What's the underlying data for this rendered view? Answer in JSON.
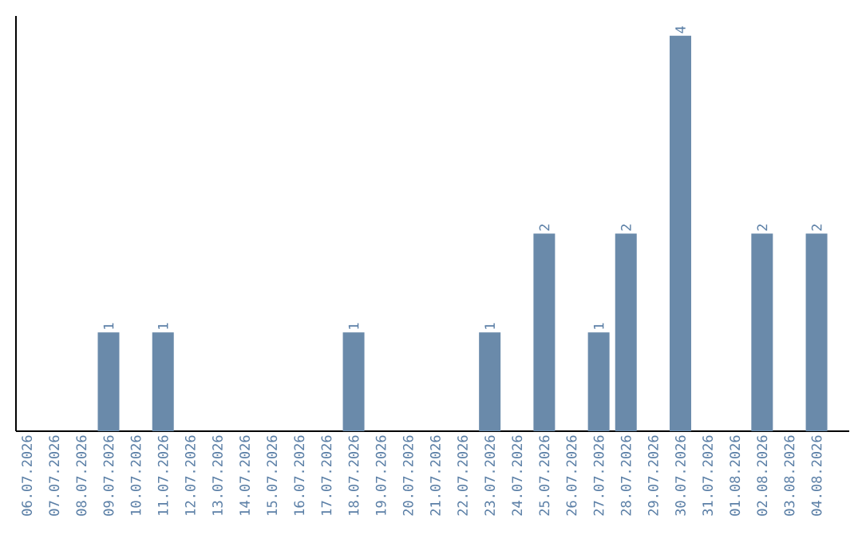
{
  "chart_data": {
    "type": "bar",
    "categories": [
      "06.07.2026",
      "07.07.2026",
      "08.07.2026",
      "09.07.2026",
      "10.07.2026",
      "11.07.2026",
      "12.07.2026",
      "13.07.2026",
      "14.07.2026",
      "15.07.2026",
      "16.07.2026",
      "17.07.2026",
      "18.07.2026",
      "19.07.2026",
      "20.07.2026",
      "21.07.2026",
      "22.07.2026",
      "23.07.2026",
      "24.07.2026",
      "25.07.2026",
      "26.07.2026",
      "27.07.2026",
      "28.07.2026",
      "29.07.2026",
      "30.07.2026",
      "31.07.2026",
      "01.08.2026",
      "02.08.2026",
      "03.08.2026",
      "04.08.2026"
    ],
    "values": [
      0,
      0,
      0,
      1,
      0,
      1,
      0,
      0,
      0,
      0,
      0,
      0,
      1,
      0,
      0,
      0,
      0,
      1,
      0,
      2,
      0,
      1,
      2,
      0,
      4,
      0,
      0,
      2,
      0,
      2
    ],
    "value_labels": [
      null,
      null,
      null,
      "1",
      null,
      "1",
      null,
      null,
      null,
      null,
      null,
      null,
      "1",
      null,
      null,
      null,
      null,
      "1",
      null,
      "2",
      null,
      "1",
      "2",
      null,
      "4",
      null,
      null,
      "2",
      null,
      "2"
    ],
    "color": "#6a8aaa",
    "ylim": [
      0,
      4.2
    ]
  }
}
